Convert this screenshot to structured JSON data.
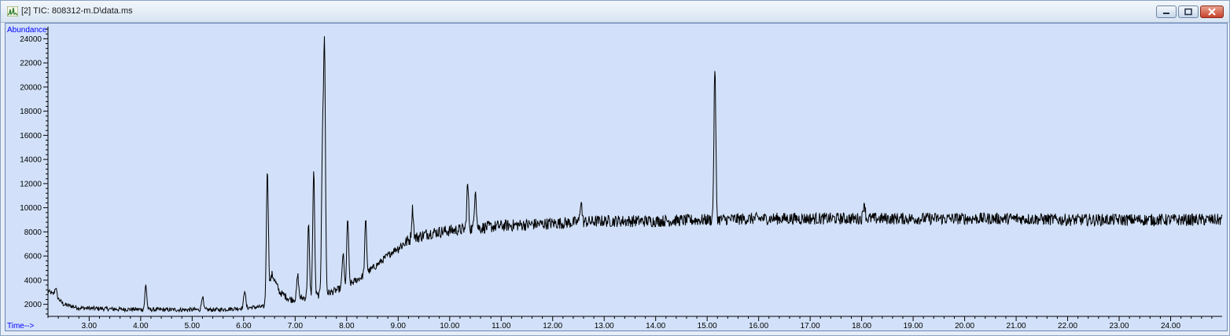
{
  "window": {
    "title": "[2] TIC: 808312-m.D\\data.ms",
    "icon": "chromatogram-app-icon",
    "buttons": [
      "minimize-icon",
      "maximize-icon",
      "close-icon"
    ]
  },
  "colors": {
    "plot_background": "#d2e1f9",
    "axis_label": "#0000ff",
    "trace": "#000000",
    "close_button": "#c7432a"
  },
  "chart_data": {
    "type": "line",
    "title": "TIC: 808312-m.D\\data.ms",
    "xlabel": "Time-->",
    "ylabel": "Abundance",
    "xlim": [
      2.2,
      25.0
    ],
    "ylim": [
      1000,
      25000
    ],
    "x_ticks": [
      "3.00",
      "4.00",
      "5.00",
      "6.00",
      "7.00",
      "8.00",
      "9.00",
      "10.00",
      "11.00",
      "12.00",
      "13.00",
      "14.00",
      "15.00",
      "16.00",
      "17.00",
      "18.00",
      "19.00",
      "20.00",
      "21.00",
      "22.00",
      "23.00",
      "24.00"
    ],
    "y_ticks": [
      "2000",
      "4000",
      "6000",
      "8000",
      "10000",
      "12000",
      "14000",
      "16000",
      "18000",
      "20000",
      "22000",
      "24000"
    ],
    "grid": false,
    "legend": "none",
    "series": [
      {
        "baseline": [
          [
            2.2,
            3100
          ],
          [
            2.35,
            2700
          ],
          [
            2.5,
            2000
          ],
          [
            2.8,
            1700
          ],
          [
            3.5,
            1600
          ],
          [
            4.5,
            1550
          ],
          [
            5.5,
            1550
          ],
          [
            6.2,
            1750
          ],
          [
            6.4,
            1800
          ],
          [
            6.55,
            4500
          ],
          [
            6.7,
            3000
          ],
          [
            6.9,
            2400
          ],
          [
            7.3,
            2600
          ],
          [
            7.7,
            3000
          ],
          [
            8.0,
            3500
          ],
          [
            8.3,
            4300
          ],
          [
            8.6,
            5300
          ],
          [
            8.9,
            6400
          ],
          [
            9.2,
            7300
          ],
          [
            9.6,
            7900
          ],
          [
            10.0,
            8100
          ],
          [
            10.5,
            8300
          ],
          [
            11.0,
            8500
          ],
          [
            12.0,
            8700
          ],
          [
            13.0,
            8900
          ],
          [
            14.0,
            8900
          ],
          [
            15.0,
            9000
          ],
          [
            16.0,
            9100
          ],
          [
            17.0,
            9100
          ],
          [
            18.0,
            9100
          ],
          [
            19.0,
            9100
          ],
          [
            20.0,
            9100
          ],
          [
            21.0,
            9100
          ],
          [
            22.0,
            9000
          ],
          [
            23.0,
            9000
          ],
          [
            24.0,
            9000
          ],
          [
            25.0,
            9000
          ]
        ],
        "peaks": [
          [
            2.35,
            3400
          ],
          [
            4.1,
            3600
          ],
          [
            5.2,
            2700
          ],
          [
            6.02,
            3200
          ],
          [
            6.46,
            13300
          ],
          [
            7.05,
            4400
          ],
          [
            7.26,
            8500
          ],
          [
            7.36,
            13100
          ],
          [
            7.53,
            14800
          ],
          [
            7.57,
            23200
          ],
          [
            7.93,
            6200
          ],
          [
            8.02,
            9100
          ],
          [
            8.37,
            8900
          ],
          [
            9.28,
            9900
          ],
          [
            10.35,
            11900
          ],
          [
            10.5,
            11700
          ],
          [
            12.55,
            10600
          ],
          [
            15.15,
            21700
          ],
          [
            18.05,
            10500
          ]
        ],
        "noise_amplitude": 500
      }
    ]
  }
}
